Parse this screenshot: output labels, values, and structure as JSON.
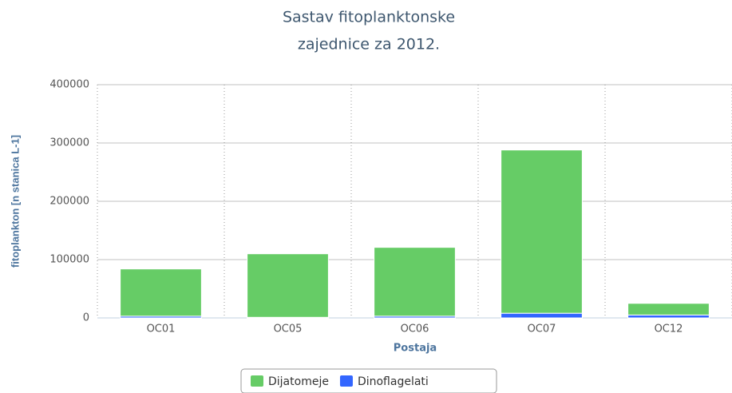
{
  "chart_data": {
    "type": "bar",
    "stacked": true,
    "title": [
      "Sastav fitoplanktonske",
      "zajednice za 2012."
    ],
    "x_label": "Postaja",
    "y_label": "fitoplankton [n stanica L-1]",
    "categories": [
      "OC01",
      "OC05",
      "OC06",
      "OC07",
      "OC12"
    ],
    "series": [
      {
        "name": "Dijatomeje",
        "color": "#66cc66",
        "values": [
          81000,
          109000,
          118000,
          280000,
          20000
        ]
      },
      {
        "name": "Dinoflagelati",
        "color": "#3366ff",
        "values": [
          3000,
          1000,
          3000,
          8000,
          5000
        ]
      }
    ],
    "ylim": [
      0,
      400000
    ],
    "yticks": [
      0,
      100000,
      200000,
      300000,
      400000
    ],
    "grid": true,
    "legend": "bottom"
  }
}
